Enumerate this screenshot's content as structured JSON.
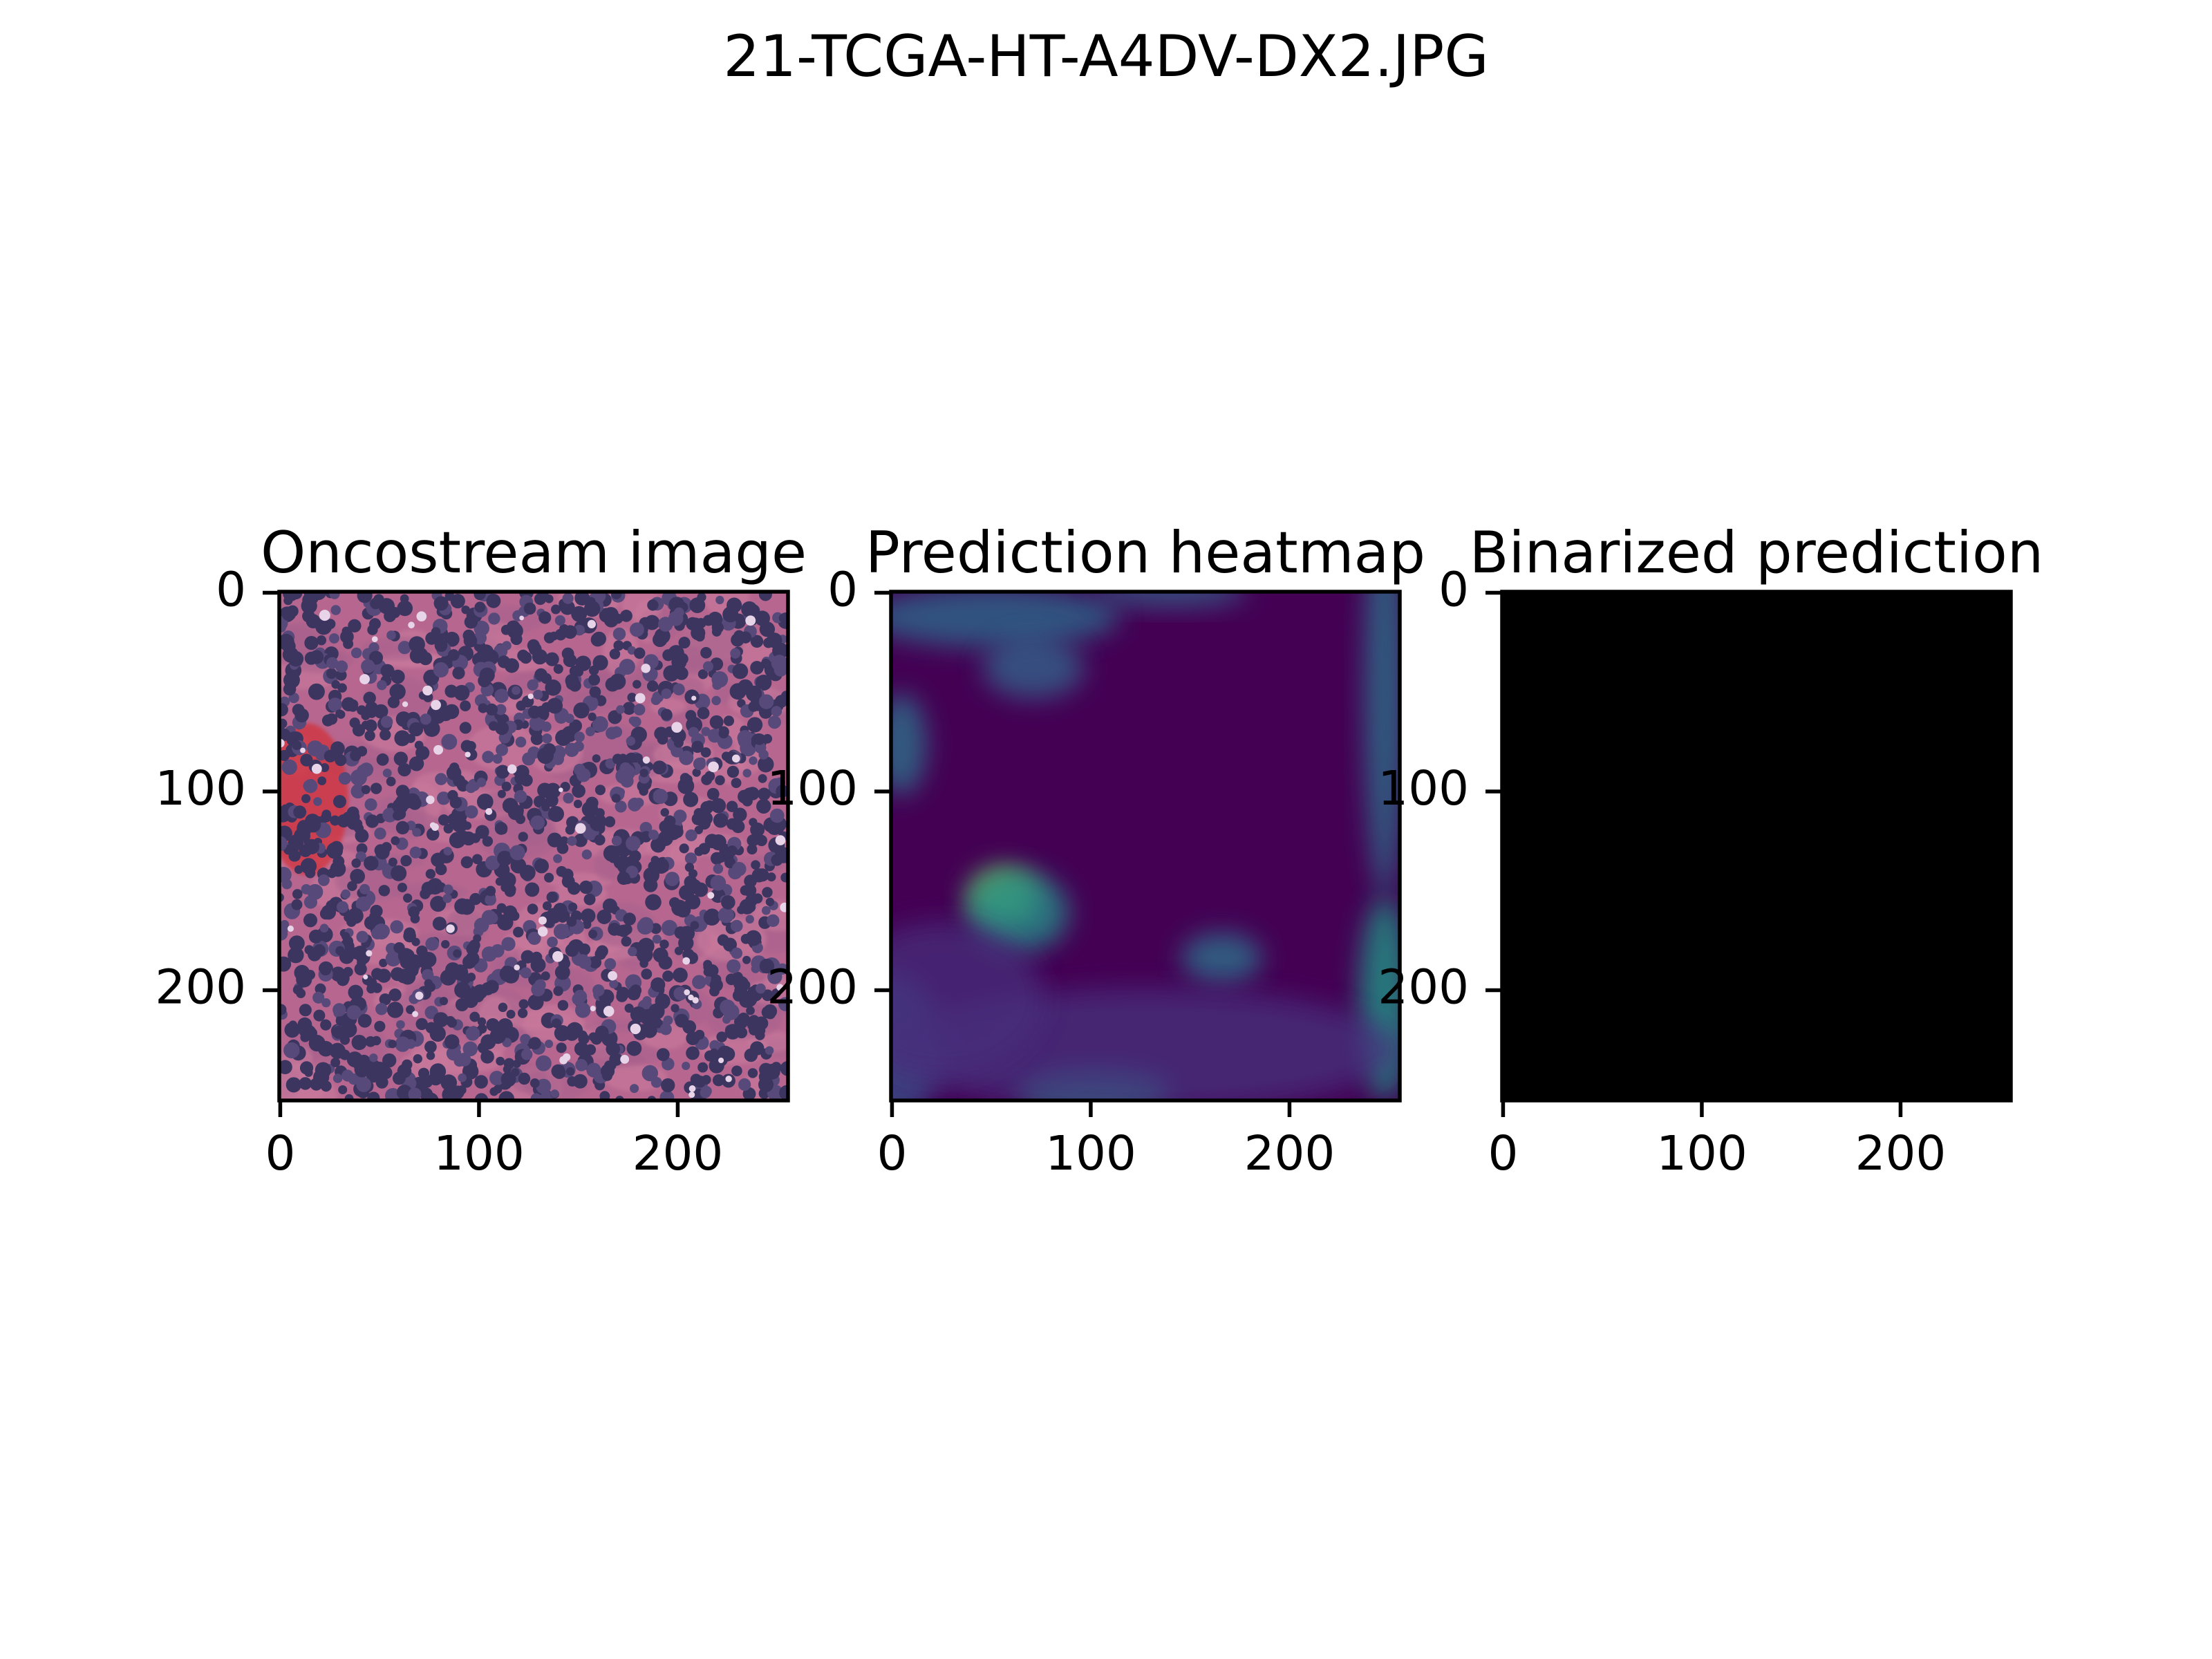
{
  "suptitle": "21-TCGA-HT-A4DV-DX2.JPG",
  "chart_data": [
    {
      "type": "image",
      "title": "Oncostream image",
      "xlim": [
        -0.5,
        255.5
      ],
      "ylim": [
        255.5,
        -0.5
      ],
      "xticks": [
        0,
        100,
        200
      ],
      "yticks": [
        0,
        100,
        200
      ]
    },
    {
      "type": "image",
      "title": "Prediction heatmap",
      "xlim": [
        -0.5,
        255.5
      ],
      "ylim": [
        255.5,
        -0.5
      ],
      "xticks": [
        0,
        100,
        200
      ],
      "yticks": [
        0,
        100,
        200
      ]
    },
    {
      "type": "image",
      "title": "Binarized prediction",
      "xlim": [
        -0.5,
        255.5
      ],
      "ylim": [
        255.5,
        -0.5
      ],
      "xticks": [
        0,
        100,
        200
      ],
      "yticks": [
        0,
        100,
        200
      ]
    }
  ]
}
